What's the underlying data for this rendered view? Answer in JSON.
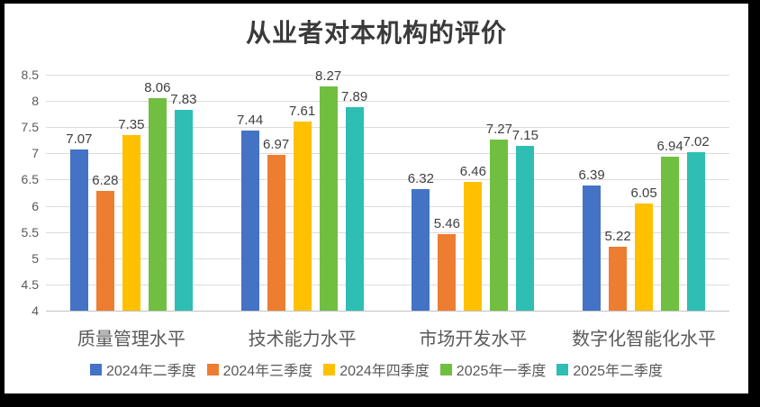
{
  "window": {
    "background": "#000000",
    "chart_background": "#ffffff"
  },
  "chart_data": {
    "type": "bar",
    "title": "从业者对本机构的评价",
    "categories": [
      "质量管理水平",
      "技术能力水平",
      "市场开发水平",
      "数字化智能化水平"
    ],
    "series": [
      {
        "name": "2024年二季度",
        "color": "#4472C4",
        "values": [
          7.07,
          7.44,
          6.32,
          6.39
        ]
      },
      {
        "name": "2024年三季度",
        "color": "#ED7D31",
        "values": [
          6.28,
          6.97,
          5.46,
          5.22
        ]
      },
      {
        "name": "2024年四季度",
        "color": "#FFC000",
        "values": [
          7.35,
          7.61,
          6.46,
          6.05
        ]
      },
      {
        "name": "2025年一季度",
        "color": "#70BF41",
        "values": [
          8.06,
          8.27,
          7.27,
          6.94
        ]
      },
      {
        "name": "2025年二季度",
        "color": "#2EBEB4",
        "values": [
          7.83,
          7.89,
          7.15,
          7.02
        ]
      }
    ],
    "ylim": [
      4,
      8.5
    ],
    "ytick_step": 0.5,
    "yticks": [
      "8.5",
      "8",
      "7.5",
      "7",
      "6.5",
      "6",
      "5.5",
      "5",
      "4.5",
      "4"
    ],
    "grid": true,
    "legend_position": "bottom",
    "data_labels": true,
    "data_label_decimals": 2
  },
  "colors": {
    "gridline": "#dcdcdc",
    "axis_line": "#c3c3c3",
    "tick_label": "#595959",
    "category_label": "#595959",
    "data_label": "#404040",
    "legend_label": "#595959",
    "title_color": "#3a3a3a"
  }
}
